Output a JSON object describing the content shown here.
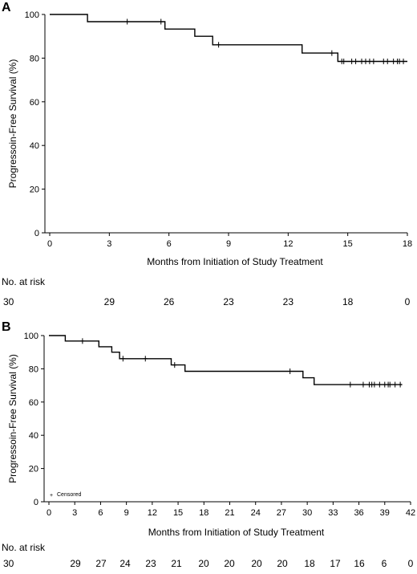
{
  "chart_data": [
    {
      "type": "line",
      "panel_label": "A",
      "ylabel": "Progressoin-Free Survival (%)",
      "xlabel": "Months from Initiation of Study Treatment",
      "xlim": [
        0,
        18
      ],
      "ylim": [
        0,
        100
      ],
      "xticks": [
        0,
        3,
        6,
        9,
        12,
        15,
        18
      ],
      "yticks": [
        0,
        20,
        40,
        60,
        80,
        100
      ],
      "step_points": [
        [
          0,
          100
        ],
        [
          1.9,
          100
        ],
        [
          1.9,
          96.7
        ],
        [
          5.8,
          96.7
        ],
        [
          5.8,
          93.3
        ],
        [
          7.3,
          93.3
        ],
        [
          7.3,
          90
        ],
        [
          8.2,
          90
        ],
        [
          8.2,
          86.1
        ],
        [
          12.7,
          86.1
        ],
        [
          12.7,
          82.3
        ],
        [
          14.5,
          82.3
        ],
        [
          14.5,
          78.5
        ],
        [
          18,
          78.5
        ]
      ],
      "censored": [
        [
          3.9,
          96.7
        ],
        [
          5.6,
          96.7
        ],
        [
          8.5,
          86.1
        ],
        [
          14.2,
          82.3
        ],
        [
          14.7,
          78.5
        ],
        [
          14.8,
          78.5
        ],
        [
          15.2,
          78.5
        ],
        [
          15.4,
          78.5
        ],
        [
          15.7,
          78.5
        ],
        [
          15.9,
          78.5
        ],
        [
          16.1,
          78.5
        ],
        [
          16.3,
          78.5
        ],
        [
          16.8,
          78.5
        ],
        [
          17.0,
          78.5
        ],
        [
          17.3,
          78.5
        ],
        [
          17.5,
          78.5
        ],
        [
          17.6,
          78.5
        ],
        [
          17.8,
          78.5
        ]
      ],
      "risk_heading": "No. at risk",
      "at_risk": [
        "30",
        "29",
        "26",
        "23",
        "23",
        "18",
        "0"
      ],
      "legend": null
    },
    {
      "type": "line",
      "panel_label": "B",
      "ylabel": "Progressoin-Free Survival (%)",
      "xlabel": "Months from Initiation of Study Treatment",
      "xlim": [
        0,
        42
      ],
      "ylim": [
        0,
        100
      ],
      "xticks": [
        0,
        3,
        6,
        9,
        12,
        15,
        18,
        21,
        24,
        27,
        30,
        33,
        36,
        39,
        42
      ],
      "yticks": [
        0,
        20,
        40,
        60,
        80,
        100
      ],
      "step_points": [
        [
          0,
          100
        ],
        [
          1.9,
          100
        ],
        [
          1.9,
          96.7
        ],
        [
          5.8,
          96.7
        ],
        [
          5.8,
          93.3
        ],
        [
          7.3,
          93.3
        ],
        [
          7.3,
          90
        ],
        [
          8.2,
          90
        ],
        [
          8.2,
          86.1
        ],
        [
          14.2,
          86.1
        ],
        [
          14.2,
          82.3
        ],
        [
          15.8,
          82.3
        ],
        [
          15.8,
          78.5
        ],
        [
          29.5,
          78.5
        ],
        [
          29.5,
          74.6
        ],
        [
          30.8,
          74.6
        ],
        [
          30.8,
          70.5
        ],
        [
          41,
          70.5
        ]
      ],
      "censored": [
        [
          3.9,
          96.7
        ],
        [
          8.6,
          86.1
        ],
        [
          11.2,
          86.1
        ],
        [
          14.6,
          82.3
        ],
        [
          28.0,
          78.5
        ],
        [
          35.0,
          70.5
        ],
        [
          36.5,
          70.5
        ],
        [
          37.2,
          70.5
        ],
        [
          37.5,
          70.5
        ],
        [
          37.8,
          70.5
        ],
        [
          38.4,
          70.5
        ],
        [
          39.0,
          70.5
        ],
        [
          39.4,
          70.5
        ],
        [
          39.6,
          70.5
        ],
        [
          40.2,
          70.5
        ],
        [
          40.8,
          70.5
        ]
      ],
      "risk_heading": "No. at risk",
      "at_risk": [
        "30",
        "29",
        "27",
        "24",
        "23",
        "21",
        "20",
        "20",
        "20",
        "20",
        "18",
        "17",
        "16",
        "6",
        "0"
      ],
      "legend": {
        "symbol": "+",
        "label": "Censored",
        "position": "bottom-left"
      }
    }
  ]
}
